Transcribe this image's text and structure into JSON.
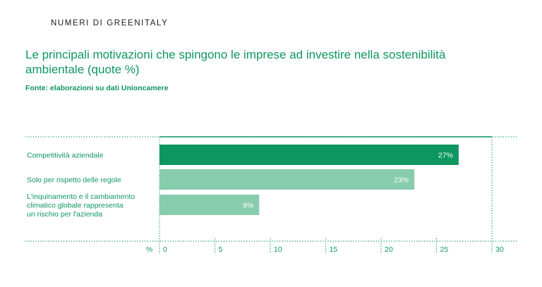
{
  "header": {
    "kicker": "NUMERI DI GREENITALY",
    "title": "Le principali motivazioni che spingono le imprese ad investire nella sostenibilità ambientale (quote %)",
    "source": "Fonte: elaborazioni su dati Unioncamere"
  },
  "chart_data": {
    "type": "bar",
    "orientation": "horizontal",
    "categories": [
      [
        "Competitività aziendale"
      ],
      [
        "Solo per rispetto delle regole"
      ],
      [
        "L'inquinamento e il cambiamento",
        "climatico globale rappresenta",
        "un rischio per l'azienda"
      ]
    ],
    "values": [
      27,
      23,
      9
    ],
    "value_labels": [
      "27%",
      "23%",
      "9%"
    ],
    "bar_colors": [
      "#0e9660",
      "#88ccae",
      "#88ccae"
    ],
    "xlim": [
      0,
      30
    ],
    "xticks": [
      0,
      5,
      10,
      15,
      20,
      25,
      30
    ],
    "x_unit_label": "%",
    "grid": true
  }
}
